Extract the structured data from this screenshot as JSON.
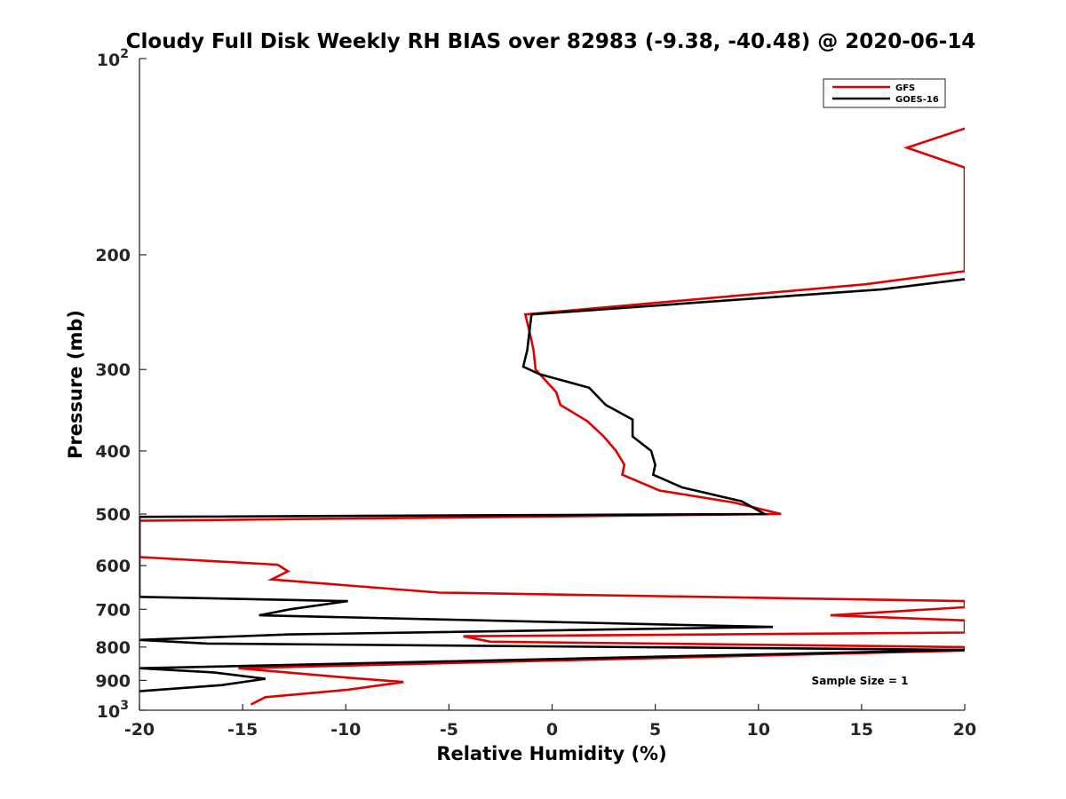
{
  "chart_data": {
    "type": "line",
    "title": "Cloudy Full Disk Weekly RH BIAS over 82983 (-9.38, -40.48) @ 2020-06-14",
    "xlabel": "Relative Humidity (%)",
    "ylabel": "Pressure (mb)",
    "xlim": [
      -20,
      20
    ],
    "ylim": [
      100,
      1000
    ],
    "y_scale": "log",
    "y_reversed": true,
    "grid": false,
    "legend_position": "top-right",
    "x_ticks": [
      "-20",
      "-15",
      "-10",
      "-5",
      "0",
      "5",
      "10",
      "15",
      "20"
    ],
    "y_ticks": [
      {
        "value": 100,
        "base": "10",
        "exp": "2"
      },
      {
        "value": 200,
        "label": "200"
      },
      {
        "value": 300,
        "label": "300"
      },
      {
        "value": 400,
        "label": "400"
      },
      {
        "value": 500,
        "label": "500"
      },
      {
        "value": 600,
        "label": "600"
      },
      {
        "value": 700,
        "label": "700"
      },
      {
        "value": 800,
        "label": "800"
      },
      {
        "value": 900,
        "label": "900"
      },
      {
        "value": 1000,
        "base": "10",
        "exp": "3"
      }
    ],
    "annotation": "Sample Size = 1",
    "series": [
      {
        "name": "GFS",
        "color": "#e00000",
        "points": [
          [
            20,
            128
          ],
          [
            17.2,
            137
          ],
          [
            20,
            147
          ],
          [
            20,
            212
          ],
          [
            15.2,
            222
          ],
          [
            -1.3,
            247
          ],
          [
            -1.1,
            262
          ],
          [
            -0.9,
            280
          ],
          [
            -0.8,
            300
          ],
          [
            0.2,
            325
          ],
          [
            0.4,
            340
          ],
          [
            1.7,
            360
          ],
          [
            2.5,
            380
          ],
          [
            3.1,
            400
          ],
          [
            3.5,
            420
          ],
          [
            3.4,
            435
          ],
          [
            5.2,
            460
          ],
          [
            8.8,
            480
          ],
          [
            11.1,
            500
          ],
          [
            -20,
            512
          ],
          [
            -20,
            582
          ],
          [
            -13.3,
            598
          ],
          [
            -12.8,
            612
          ],
          [
            -13.6,
            630
          ],
          [
            -5.5,
            660
          ],
          [
            20,
            680
          ],
          [
            20,
            695
          ],
          [
            13.5,
            715
          ],
          [
            20,
            728
          ],
          [
            20,
            760
          ],
          [
            -4.3,
            770
          ],
          [
            -3.0,
            785
          ],
          [
            20,
            800
          ],
          [
            20,
            810
          ],
          [
            -15.2,
            862
          ],
          [
            -9.8,
            892
          ],
          [
            -7.2,
            905
          ],
          [
            -9.9,
            930
          ],
          [
            -13.9,
            955
          ],
          [
            -14.6,
            980
          ]
        ]
      },
      {
        "name": "GOES-16",
        "color": "#000000",
        "points": [
          [
            20,
            218
          ],
          [
            16.0,
            226
          ],
          [
            -1.0,
            247
          ],
          [
            -1.1,
            262
          ],
          [
            -1.2,
            280
          ],
          [
            -1.4,
            297
          ],
          [
            -0.6,
            305
          ],
          [
            1.8,
            320
          ],
          [
            2.6,
            340
          ],
          [
            3.9,
            358
          ],
          [
            3.9,
            380
          ],
          [
            4.8,
            400
          ],
          [
            5.0,
            420
          ],
          [
            4.9,
            435
          ],
          [
            6.3,
            455
          ],
          [
            9.2,
            478
          ],
          [
            10.3,
            500
          ],
          [
            -20,
            505
          ],
          [
            -20,
            670
          ],
          [
            -9.9,
            680
          ],
          [
            -12.7,
            700
          ],
          [
            -14.2,
            715
          ],
          [
            10.7,
            745
          ],
          [
            -12.7,
            765
          ],
          [
            -20,
            780
          ],
          [
            -16.7,
            790
          ],
          [
            20,
            808
          ],
          [
            -20,
            862
          ],
          [
            -16.4,
            875
          ],
          [
            -13.9,
            895
          ],
          [
            -16.0,
            915
          ],
          [
            -20,
            935
          ]
        ]
      }
    ]
  }
}
